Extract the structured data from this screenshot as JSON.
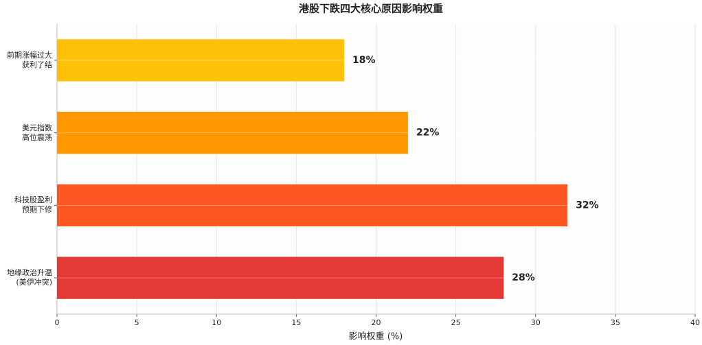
{
  "chart_data": {
    "type": "barh",
    "title": "港股下跌四大核心原因影响权重",
    "categories": [
      "前期涨幅过大\n获利了结",
      "美元指数\n高位震荡",
      "科技股盈利\n预期下修",
      "地缘政治升温\n(美伊冲突)"
    ],
    "values": [
      18,
      22,
      32,
      28
    ],
    "value_labels": [
      "18%",
      "22%",
      "32%",
      "28%"
    ],
    "colors": [
      "#FFC107",
      "#FF9800",
      "#FF5722",
      "#E53935"
    ],
    "xlabel": "影响权重 (%)",
    "xlim": [
      0,
      40
    ],
    "xticks": [
      0,
      5,
      10,
      15,
      20,
      25,
      30,
      35,
      40
    ],
    "grid": true
  }
}
